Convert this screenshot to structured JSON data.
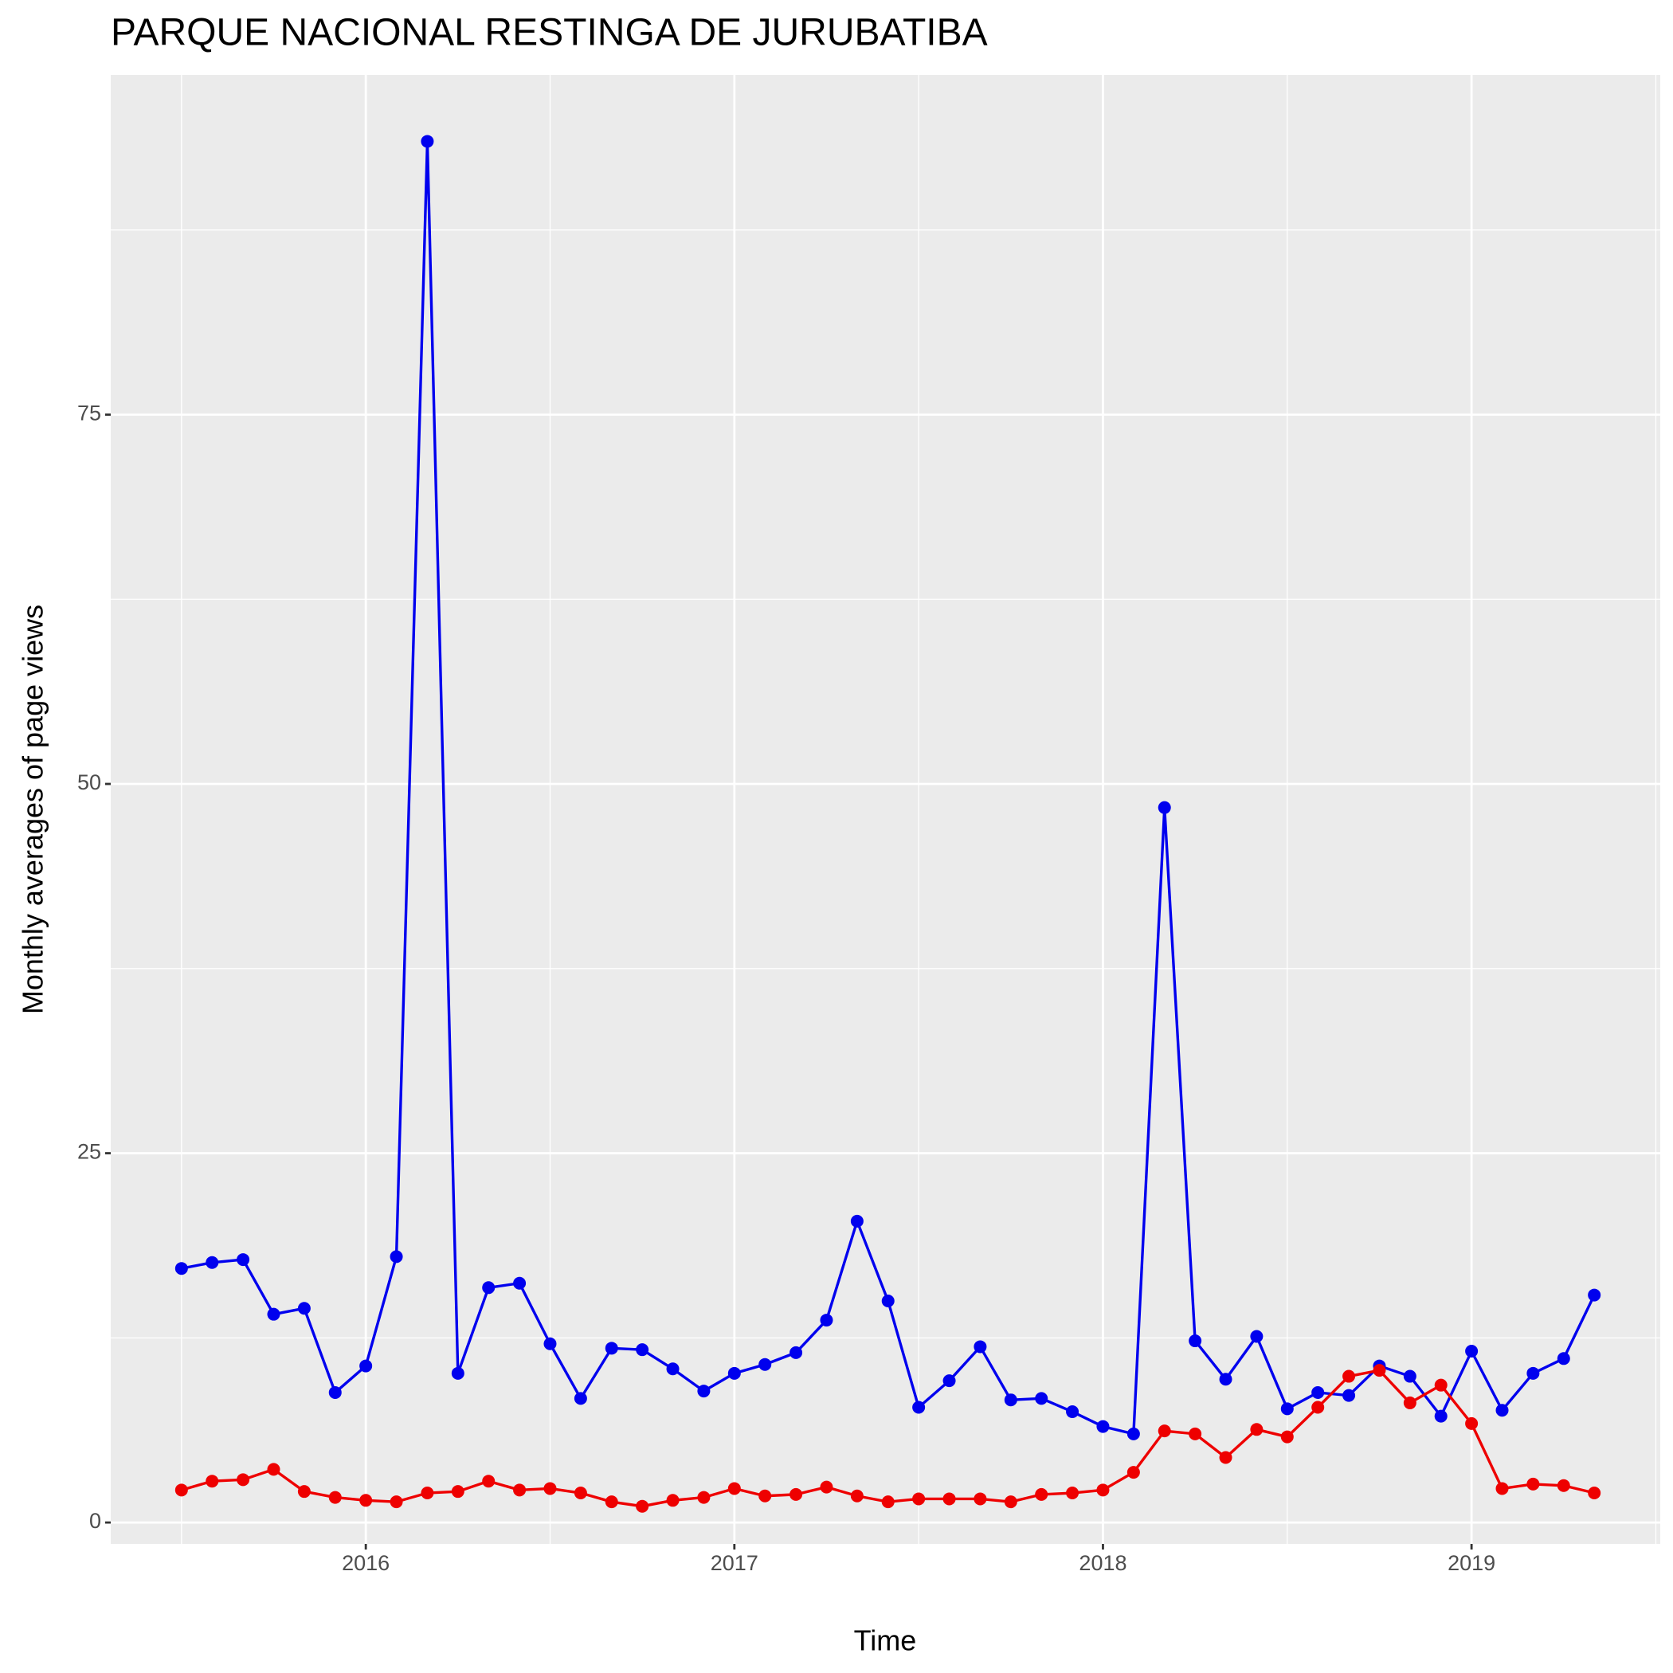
{
  "chart_data": {
    "type": "line",
    "title": "PARQUE NACIONAL RESTINGA DE JURUBATIBA",
    "x_label": "Time",
    "y_label": "Monthly averages of page views",
    "x": [
      2015.5,
      2015.583,
      2015.667,
      2015.75,
      2015.833,
      2015.917,
      2016,
      2016.083,
      2016.167,
      2016.25,
      2016.333,
      2016.417,
      2016.5,
      2016.583,
      2016.667,
      2016.75,
      2016.833,
      2016.917,
      2017,
      2017.083,
      2017.167,
      2017.25,
      2017.333,
      2017.417,
      2017.5,
      2017.583,
      2017.667,
      2017.75,
      2017.833,
      2017.917,
      2018,
      2018.083,
      2018.167,
      2018.25,
      2018.333,
      2018.417,
      2018.5,
      2018.583,
      2018.667,
      2018.75,
      2018.833,
      2018.917,
      2019,
      2019.083,
      2019.167,
      2019.25,
      2019.333
    ],
    "series": [
      {
        "color": "#0000ee",
        "values": [
          17.2,
          17.6,
          17.8,
          14.1,
          14.5,
          8.8,
          10.6,
          18.0,
          93.5,
          10.1,
          15.9,
          16.2,
          12.1,
          8.4,
          11.8,
          11.7,
          10.4,
          8.9,
          10.1,
          10.7,
          11.5,
          13.7,
          20.4,
          15.0,
          7.8,
          9.6,
          11.9,
          8.3,
          8.4,
          7.5,
          6.5,
          6.0,
          48.4,
          12.3,
          9.7,
          12.6,
          7.7,
          8.8,
          8.6,
          10.6,
          9.9,
          7.2,
          11.6,
          7.6,
          10.1,
          11.1,
          15.4
        ]
      },
      {
        "color": "#ee0000",
        "values": [
          2.2,
          2.8,
          2.9,
          3.6,
          2.1,
          1.7,
          1.5,
          1.4,
          2.0,
          2.1,
          2.8,
          2.2,
          2.3,
          2.0,
          1.4,
          1.1,
          1.5,
          1.7,
          2.3,
          1.8,
          1.9,
          2.4,
          1.8,
          1.4,
          1.6,
          1.6,
          1.6,
          1.4,
          1.9,
          2.0,
          2.2,
          3.4,
          6.2,
          6.0,
          4.4,
          6.3,
          5.8,
          7.8,
          9.9,
          10.3,
          8.1,
          9.3,
          6.7,
          2.3,
          2.6,
          2.5,
          2.0
        ]
      }
    ],
    "xlim": [
      2015.308,
      2019.512
    ],
    "xticks": [
      2016,
      2017,
      2018,
      2019
    ],
    "ylim": [
      -1.45,
      98.0
    ],
    "yticks": [
      0,
      25,
      50,
      75
    ],
    "grid": true
  }
}
